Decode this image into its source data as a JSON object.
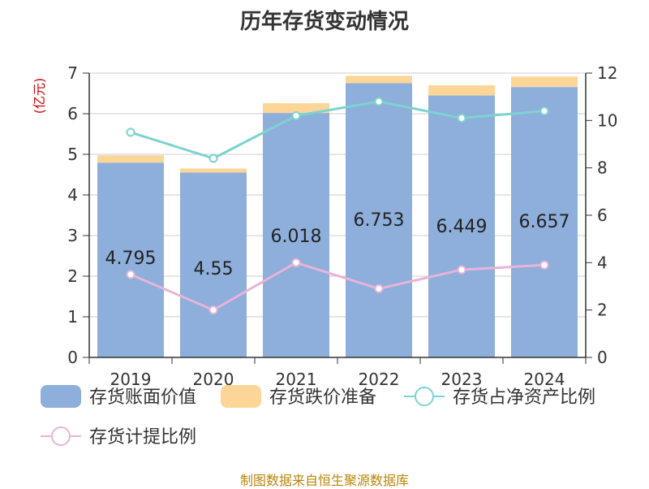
{
  "title": "历年存货变动情况",
  "footer": "制图数据来自恒生聚源数据库",
  "colors": {
    "book_value": "#8eaedb",
    "impairment": "#fdd597",
    "net_asset_ratio": "#7dd3d0",
    "provision_ratio": "#e8b4d8",
    "unit_label": "#cc0000",
    "axis": "#333333",
    "grid": "#cccccc"
  },
  "chart_data": {
    "type": "bar",
    "title": "历年存货变动情况",
    "ylabel": "(亿元)",
    "y2label": "%",
    "categories": [
      "2019",
      "2020",
      "2021",
      "2022",
      "2023",
      "2024"
    ],
    "ylim": [
      0,
      7
    ],
    "y_ticks": [
      "0",
      "1",
      "2",
      "3",
      "4",
      "5",
      "6",
      "7"
    ],
    "y2lim": [
      0,
      12
    ],
    "y2_ticks": [
      "0",
      "2",
      "4",
      "6",
      "8",
      "10",
      "12"
    ],
    "grid": true,
    "legend_position": "bottom",
    "series": [
      {
        "name": "存货账面价值",
        "kind": "bar-stacked",
        "color": "#8eaedb",
        "values": [
          4.795,
          4.55,
          6.018,
          6.753,
          6.449,
          6.657
        ],
        "labels": [
          "4.795",
          "4.55",
          "6.018",
          "6.753",
          "6.449",
          "6.657"
        ]
      },
      {
        "name": "存货跌价准备",
        "kind": "bar-stacked",
        "color": "#fdd597",
        "values": [
          0.18,
          0.1,
          0.24,
          0.18,
          0.25,
          0.26
        ]
      },
      {
        "name": "存货占净资产比例",
        "kind": "line",
        "axis": "right",
        "color": "#7dd3d0",
        "values": [
          9.5,
          8.4,
          10.2,
          10.8,
          10.1,
          10.4
        ]
      },
      {
        "name": "存货计提比例",
        "kind": "line",
        "axis": "right",
        "color": "#e8b4d8",
        "values": [
          3.5,
          2.0,
          4.0,
          2.9,
          3.7,
          3.9
        ]
      }
    ]
  }
}
